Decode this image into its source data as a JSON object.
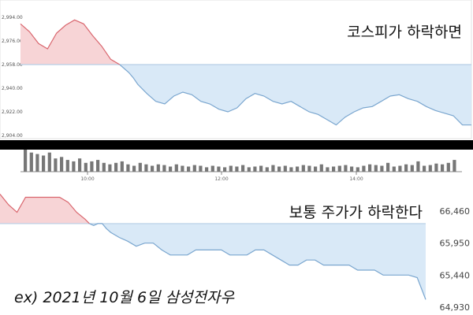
{
  "annotations": {
    "top": "코스피가 하락하면",
    "bottom": "보통 주가가 하락한다",
    "example": "ex) 2021년 10월 6일 삼성전자우"
  },
  "colors": {
    "up_fill": "#f7d4d6",
    "up_line": "#d9666e",
    "down_fill": "#d9e9f7",
    "down_line": "#7aa6cf",
    "baseline": "#b7cfe6",
    "divider": "#000000",
    "volume": "#777777"
  },
  "chart_data": [
    {
      "type": "area",
      "name": "kospi",
      "yticks": [
        "2,994.00",
        "2,976.00",
        "2,958.00",
        "2,940.00",
        "2,922.00",
        "2,904.00"
      ],
      "ylim": [
        2904,
        2994
      ],
      "baseline": 2958,
      "xlim": [
        0,
        100
      ],
      "x": [
        0,
        2,
        4,
        6,
        8,
        10,
        12,
        14,
        16,
        18,
        20,
        22,
        24,
        25,
        26,
        28,
        30,
        32,
        34,
        36,
        38,
        40,
        42,
        44,
        46,
        48,
        50,
        52,
        54,
        56,
        58,
        60,
        62,
        64,
        66,
        68,
        70,
        72,
        74,
        76,
        78,
        80,
        82,
        84,
        86,
        88,
        90,
        92,
        94,
        96,
        98,
        100
      ],
      "values": [
        2989,
        2983,
        2974,
        2970,
        2982,
        2988,
        2992,
        2989,
        2980,
        2972,
        2962,
        2958,
        2952,
        2948,
        2943,
        2936,
        2930,
        2928,
        2934,
        2937,
        2935,
        2930,
        2928,
        2924,
        2922,
        2925,
        2932,
        2936,
        2934,
        2930,
        2928,
        2930,
        2926,
        2922,
        2920,
        2916,
        2912,
        2918,
        2922,
        2925,
        2926,
        2930,
        2934,
        2935,
        2932,
        2930,
        2926,
        2923,
        2921,
        2919,
        2912,
        2912
      ]
    },
    {
      "type": "bar",
      "name": "volume",
      "xticks": [
        "10:00",
        "12:00",
        "14:00"
      ],
      "values": [
        30,
        26,
        24,
        22,
        26,
        18,
        20,
        16,
        14,
        18,
        12,
        14,
        16,
        12,
        10,
        12,
        14,
        10,
        8,
        12,
        10,
        8,
        10,
        9,
        7,
        10,
        8,
        7,
        9,
        8,
        6,
        8,
        7,
        6,
        8,
        7,
        9,
        6,
        7,
        8,
        6,
        9,
        7,
        8,
        6,
        7,
        9,
        8,
        7,
        10,
        6,
        7,
        8,
        9,
        7,
        6,
        8,
        10,
        9,
        8,
        12,
        7,
        8,
        10,
        9,
        14,
        8,
        9,
        11,
        10,
        12,
        16
      ]
    },
    {
      "type": "area",
      "name": "samsung-preferred",
      "yticks": [
        "66,460",
        "65,950",
        "65,440",
        "64,930"
      ],
      "ylim": [
        64930,
        66460
      ],
      "baseline": 66260,
      "xlim": [
        0,
        100
      ],
      "x": [
        0,
        2,
        4,
        6,
        8,
        10,
        12,
        14,
        16,
        18,
        20,
        21,
        22,
        23,
        24,
        25,
        26,
        28,
        30,
        32,
        34,
        36,
        38,
        40,
        42,
        44,
        46,
        48,
        50,
        52,
        54,
        56,
        58,
        60,
        62,
        64,
        66,
        68,
        70,
        72,
        74,
        76,
        78,
        80,
        82,
        84,
        86,
        88,
        90,
        92,
        94,
        96,
        98,
        100
      ],
      "values": [
        66730,
        66560,
        66440,
        66680,
        66680,
        66680,
        66680,
        66680,
        66600,
        66440,
        66330,
        66260,
        66230,
        66260,
        66260,
        66180,
        66120,
        66040,
        65980,
        65900,
        65950,
        65950,
        65840,
        65760,
        65760,
        65760,
        65840,
        65840,
        65840,
        65840,
        65760,
        65760,
        65760,
        65840,
        65840,
        65760,
        65680,
        65600,
        65600,
        65680,
        65680,
        65600,
        65600,
        65600,
        65600,
        65520,
        65520,
        65520,
        65440,
        65440,
        65440,
        65440,
        65400,
        65050
      ]
    }
  ]
}
